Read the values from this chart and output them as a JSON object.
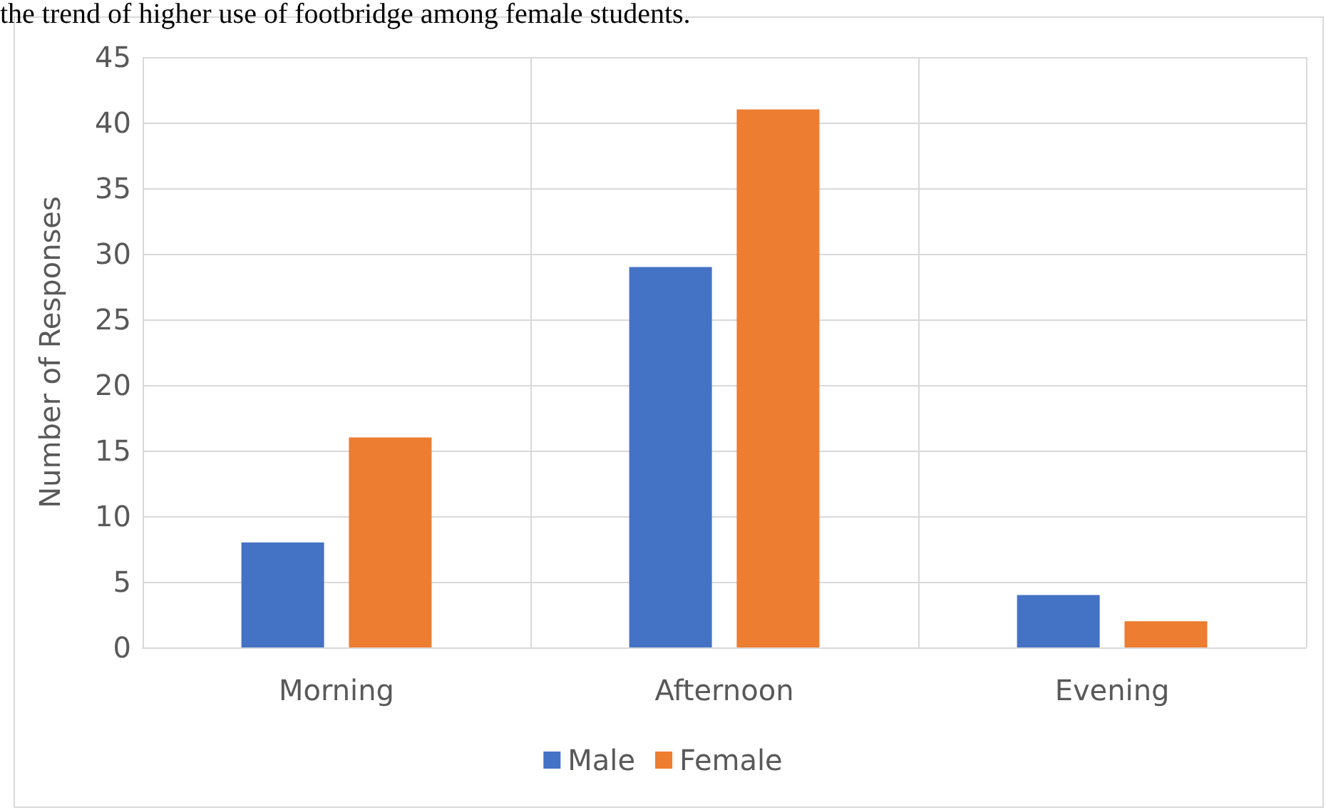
{
  "chart_data": {
    "type": "bar",
    "ylabel": "Number of Responses",
    "annotations": [
      "the trend of higher use of footbridge among female students."
    ],
    "categories": [
      "Morning",
      "Afternoon",
      "Evening"
    ],
    "series": [
      {
        "name": "Male",
        "color": "#4472c4",
        "values": [
          8,
          29,
          4
        ]
      },
      {
        "name": "Female",
        "color": "#ed7d31",
        "values": [
          16,
          41,
          2
        ]
      }
    ],
    "ylim": [
      0,
      45
    ],
    "yticks": [
      0,
      5,
      10,
      15,
      20,
      25,
      30,
      35,
      40,
      45
    ],
    "grid": true,
    "legend": "bottom"
  }
}
